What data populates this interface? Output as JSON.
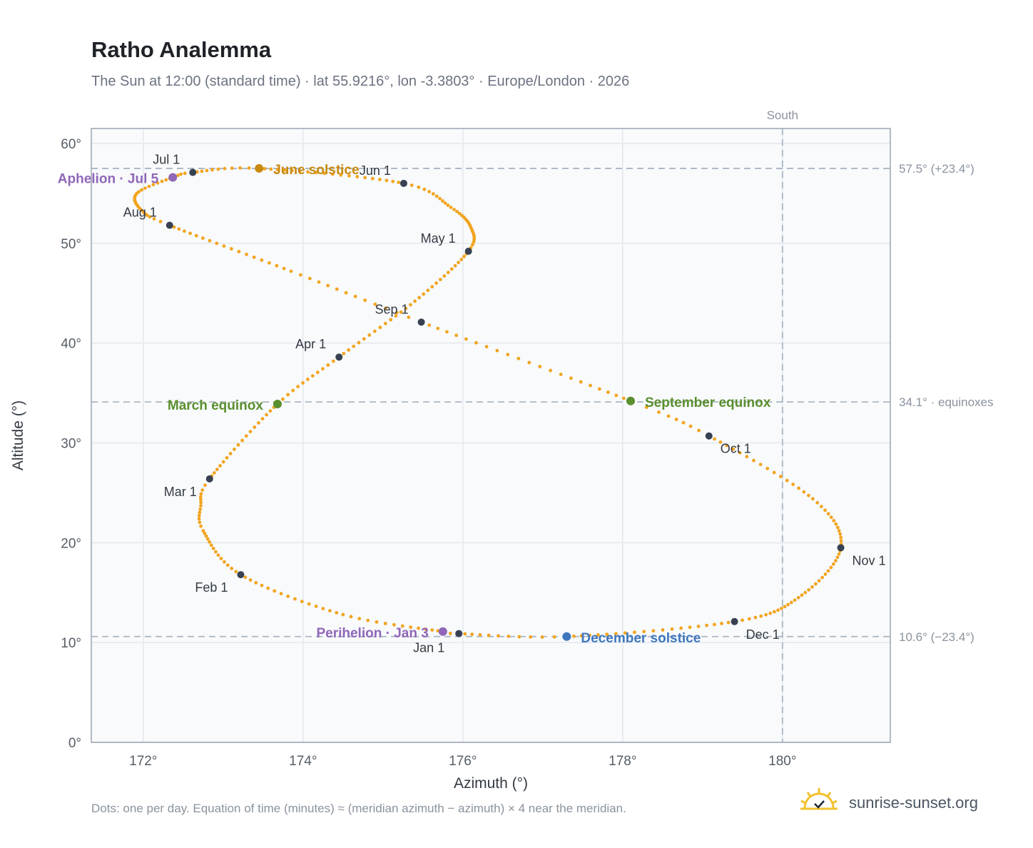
{
  "title": "Ratho Analemma",
  "subtitle": "The Sun at 12:00 (standard time) · lat 55.9216°, lon -3.3803° · Europe/London · 2026",
  "footnote": "Dots: one per day. Equation of time (minutes) ≈ (meridian azimuth − azimuth) × 4 near the meridian.",
  "brand": "sunrise-sunset.org",
  "colors": {
    "curve": "#f2a41f",
    "month_dot": "#374151",
    "june": "#c98a0f",
    "equinox": "#5a8f2e",
    "december": "#3f77bf",
    "perihelion": "#9067b8",
    "grid": "#e3e8ee",
    "plot_bg": "#f8fafc",
    "ref_line": "#aab6c2",
    "brand_sun": "#f2c12e"
  },
  "chart_data": {
    "type": "scatter",
    "title": "Ratho Analemma",
    "xlabel": "Azimuth (°)",
    "ylabel": "Altitude (°)",
    "xlim": [
      171.35,
      181.35
    ],
    "ylim": [
      0,
      61.5
    ],
    "xticks": [
      172,
      174,
      176,
      178,
      180
    ],
    "xtick_labels": [
      "172°",
      "174°",
      "176°",
      "178°",
      "180°"
    ],
    "yticks": [
      0,
      10,
      20,
      30,
      40,
      50,
      60
    ],
    "ytick_labels": [
      "0°",
      "10°",
      "20°",
      "30°",
      "40°",
      "50°",
      "60°"
    ],
    "grid": true,
    "south_label": "South",
    "south_azimuth": 180,
    "reference_lines": [
      {
        "altitude": 57.5,
        "label": "57.5° (+23.4°)"
      },
      {
        "altitude": 34.1,
        "label": "34.1° · equinoxes"
      },
      {
        "altitude": 10.6,
        "label": "10.6° (−23.4°)"
      }
    ],
    "anchors": [
      {
        "day": 0,
        "az": 175.95,
        "alt": 10.9
      },
      {
        "day": 2,
        "az": 175.75,
        "alt": 11.1
      },
      {
        "day": 15,
        "az": 174.5,
        "alt": 12.8
      },
      {
        "day": 31,
        "az": 173.22,
        "alt": 16.8
      },
      {
        "day": 45,
        "az": 172.75,
        "alt": 21.2
      },
      {
        "day": 52,
        "az": 172.72,
        "alt": 23.7
      },
      {
        "day": 59,
        "az": 172.83,
        "alt": 26.4
      },
      {
        "day": 78,
        "az": 173.68,
        "alt": 33.9
      },
      {
        "day": 90,
        "az": 174.45,
        "alt": 38.6
      },
      {
        "day": 105,
        "az": 175.4,
        "alt": 44.2
      },
      {
        "day": 120,
        "az": 176.07,
        "alt": 49.2
      },
      {
        "day": 130,
        "az": 176.1,
        "alt": 51.6
      },
      {
        "day": 140,
        "az": 175.85,
        "alt": 53.6
      },
      {
        "day": 151,
        "az": 175.26,
        "alt": 56.0
      },
      {
        "day": 171,
        "az": 173.45,
        "alt": 57.5
      },
      {
        "day": 181,
        "az": 172.62,
        "alt": 57.1
      },
      {
        "day": 185,
        "az": 172.37,
        "alt": 56.6
      },
      {
        "day": 195,
        "az": 171.92,
        "alt": 55.0
      },
      {
        "day": 205,
        "az": 171.98,
        "alt": 53.3
      },
      {
        "day": 212,
        "az": 172.33,
        "alt": 51.8
      },
      {
        "day": 230,
        "az": 173.85,
        "alt": 47.2
      },
      {
        "day": 243,
        "az": 175.48,
        "alt": 42.1
      },
      {
        "day": 265,
        "az": 178.1,
        "alt": 34.2
      },
      {
        "day": 273,
        "az": 179.08,
        "alt": 30.7
      },
      {
        "day": 290,
        "az": 180.38,
        "alt": 24.4
      },
      {
        "day": 304,
        "az": 180.73,
        "alt": 19.5
      },
      {
        "day": 320,
        "az": 180.2,
        "alt": 14.5
      },
      {
        "day": 334,
        "az": 179.4,
        "alt": 12.1
      },
      {
        "day": 354,
        "az": 177.3,
        "alt": 10.6
      },
      {
        "day": 365,
        "az": 175.95,
        "alt": 10.9
      }
    ],
    "month_markers": [
      {
        "label": "Jan 1",
        "az": 175.95,
        "alt": 10.9,
        "pos": "below"
      },
      {
        "label": "Feb 1",
        "az": 173.22,
        "alt": 16.8,
        "pos": "below-left"
      },
      {
        "label": "Mar 1",
        "az": 172.83,
        "alt": 26.4,
        "pos": "below-left"
      },
      {
        "label": "Apr 1",
        "az": 174.45,
        "alt": 38.6,
        "pos": "upper-left"
      },
      {
        "label": "May 1",
        "az": 176.07,
        "alt": 49.2,
        "pos": "upper-left"
      },
      {
        "label": "Jun 1",
        "az": 175.26,
        "alt": 56.0,
        "pos": "upper-left"
      },
      {
        "label": "Jul 1",
        "az": 172.62,
        "alt": 57.1,
        "pos": "upper-left"
      },
      {
        "label": "Aug 1",
        "az": 172.33,
        "alt": 51.8,
        "pos": "upper-left"
      },
      {
        "label": "Sep 1",
        "az": 175.48,
        "alt": 42.1,
        "pos": "upper-left"
      },
      {
        "label": "Oct 1",
        "az": 179.08,
        "alt": 30.7,
        "pos": "below-right"
      },
      {
        "label": "Nov 1",
        "az": 180.73,
        "alt": 19.5,
        "pos": "below-right"
      },
      {
        "label": "Dec 1",
        "az": 179.4,
        "alt": 12.1,
        "pos": "below-right"
      }
    ],
    "events": [
      {
        "label": "June solstice",
        "az": 173.45,
        "alt": 57.5,
        "color": "#c98a0f",
        "pos": "right"
      },
      {
        "label": "Aphelion · Jul 5",
        "az": 172.37,
        "alt": 56.6,
        "color": "#9067b8",
        "pos": "left"
      },
      {
        "label": "March equinox",
        "az": 173.68,
        "alt": 33.9,
        "color": "#5a8f2e",
        "pos": "left"
      },
      {
        "label": "September equinox",
        "az": 178.1,
        "alt": 34.2,
        "color": "#5a8f2e",
        "pos": "right"
      },
      {
        "label": "Perihelion · Jan 3",
        "az": 175.75,
        "alt": 11.1,
        "color": "#9067b8",
        "pos": "left"
      },
      {
        "label": "December solstice",
        "az": 177.3,
        "alt": 10.6,
        "color": "#3f77bf",
        "pos": "right"
      }
    ]
  }
}
